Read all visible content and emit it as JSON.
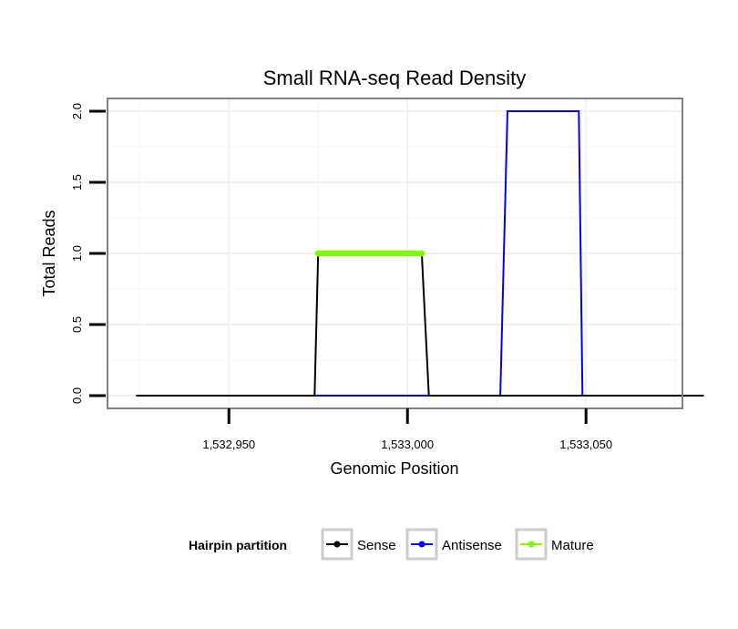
{
  "chart_data": {
    "type": "line",
    "title": "Small RNA-seq Read Density",
    "xlabel": "Genomic Position",
    "ylabel": "Total Reads",
    "xlim": [
      1532916,
      1533077
    ],
    "ylim": [
      -0.09,
      2.09
    ],
    "x_ticks": [
      1532950,
      1533000,
      1533050
    ],
    "x_tick_labels": [
      "1,532,950",
      "1,533,000",
      "1,533,050"
    ],
    "y_ticks": [
      0.0,
      0.5,
      1.0,
      1.5,
      2.0
    ],
    "y_tick_labels": [
      "0.0",
      "0.5",
      "1.0",
      "1.5",
      "2.0"
    ],
    "grid": true,
    "legend_position": "bottom",
    "legend_title": "Hairpin partition",
    "series": [
      {
        "name": "Antisense",
        "color": "#0000ff",
        "points": [
          [
            1532974,
            0
          ],
          [
            1533006,
            0
          ],
          [
            1533026,
            0
          ],
          [
            1533028,
            2
          ],
          [
            1533048,
            2
          ],
          [
            1533049,
            0
          ],
          [
            1533061,
            0
          ]
        ]
      },
      {
        "name": "Sense",
        "color": "#000000",
        "points": [
          [
            1532924,
            0
          ],
          [
            1532974,
            0
          ],
          [
            1532975,
            1
          ],
          [
            1533004,
            1
          ],
          [
            1533006,
            0
          ],
          [
            1533026,
            0
          ],
          [
            1533083,
            0
          ]
        ]
      },
      {
        "name": "Mature",
        "color": "#7cfc00",
        "points": [
          [
            1532975,
            1
          ],
          [
            1533004,
            1
          ]
        ]
      }
    ],
    "legend_entries": [
      {
        "name": "Sense",
        "color": "#000000"
      },
      {
        "name": "Antisense",
        "color": "#0000ff"
      },
      {
        "name": "Mature",
        "color": "#7cfc00"
      }
    ]
  }
}
